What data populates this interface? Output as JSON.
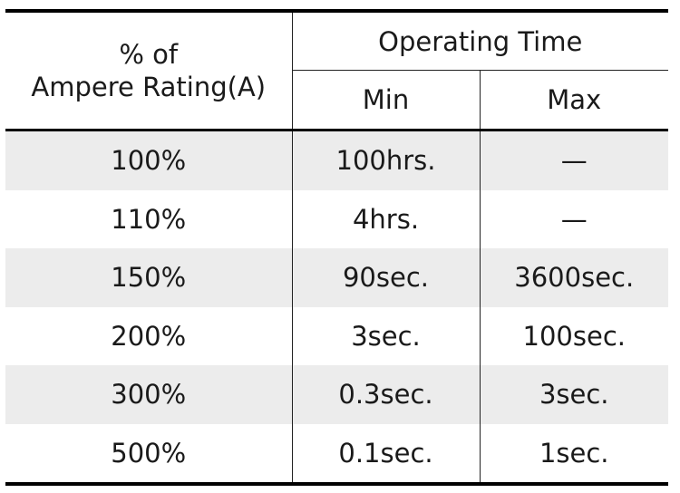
{
  "header": {
    "label_line1": "% of",
    "label_line2": "Ampere Rating(A)",
    "operating_time": "Operating Time",
    "min": "Min",
    "max": "Max"
  },
  "rows": [
    {
      "rating": "100%",
      "min": "100hrs.",
      "max": "—"
    },
    {
      "rating": "110%",
      "min": "4hrs.",
      "max": "—"
    },
    {
      "rating": "150%",
      "min": "90sec.",
      "max": "3600sec."
    },
    {
      "rating": "200%",
      "min": "3sec.",
      "max": "100sec."
    },
    {
      "rating": "300%",
      "min": "0.3sec.",
      "max": "3sec."
    },
    {
      "rating": "500%",
      "min": "0.1sec.",
      "max": "1sec."
    }
  ]
}
